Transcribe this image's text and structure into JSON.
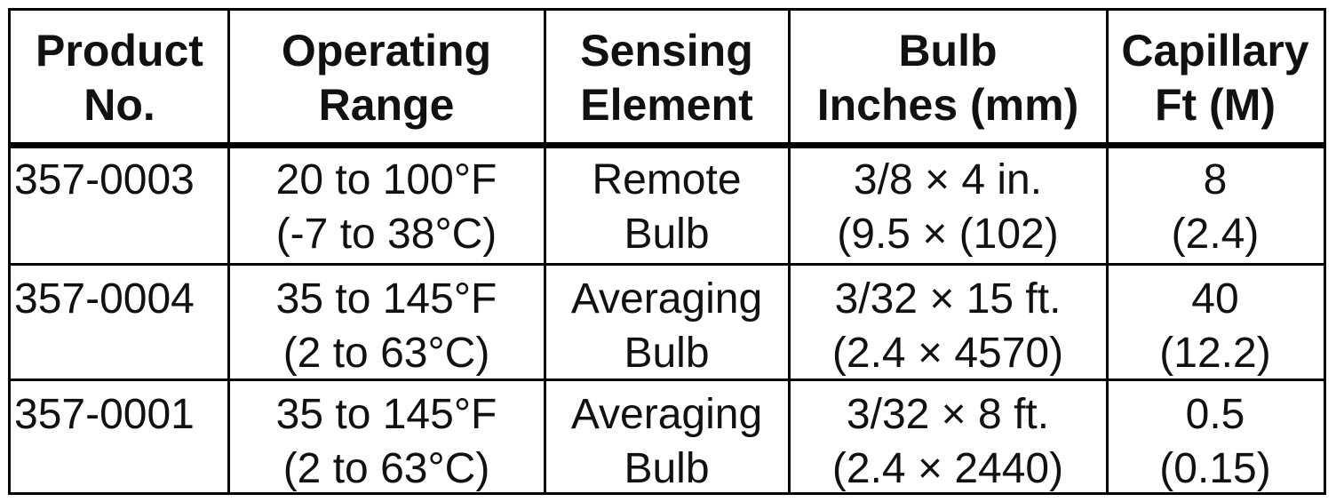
{
  "table": {
    "headers": [
      [
        "Product",
        "No."
      ],
      [
        "Operating",
        "Range"
      ],
      [
        "Sensing",
        "Element"
      ],
      [
        "Bulb",
        "Inches (mm)"
      ],
      [
        "Capillary",
        "Ft (M)"
      ]
    ],
    "rows": [
      [
        [
          "357-0003"
        ],
        [
          "20 to 100°F",
          "(-7 to 38°C)"
        ],
        [
          "Remote",
          "Bulb"
        ],
        [
          "3/8 × 4 in.",
          "(9.5 × (102)"
        ],
        [
          "8",
          "(2.4)"
        ]
      ],
      [
        [
          "357-0004"
        ],
        [
          "35 to 145°F",
          "(2 to 63°C)"
        ],
        [
          "Averaging",
          "Bulb"
        ],
        [
          "3/32 × 15 ft.",
          "(2.4 × 4570)"
        ],
        [
          "40",
          "(12.2)"
        ]
      ],
      [
        [
          "357-0001"
        ],
        [
          "35 to 145°F",
          "(2 to 63°C)"
        ],
        [
          "Averaging",
          "Bulb"
        ],
        [
          "3/32 × 8 ft.",
          "(2.4 × 2440)"
        ],
        [
          "0.5",
          "(0.15)"
        ]
      ]
    ]
  }
}
